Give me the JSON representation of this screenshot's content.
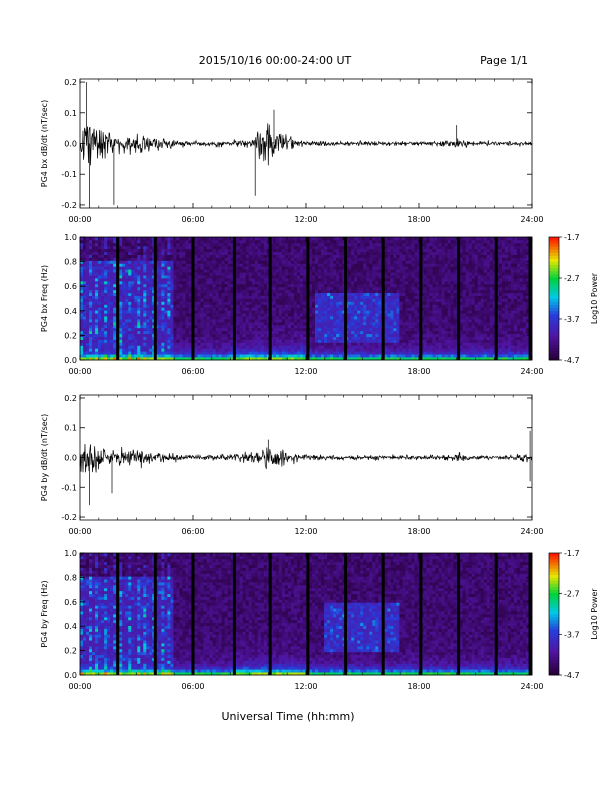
{
  "header": {
    "title": "2015/10/16  00:00-24:00 UT",
    "page": "Page 1/1"
  },
  "xlabel": "Universal Time (hh:mm)",
  "chart_data": [
    {
      "type": "line",
      "name": "bx-timeseries",
      "ylabel": "PG4 bx dB/dt (nT/sec)",
      "xlim": [
        0,
        24
      ],
      "ylim": [
        -0.21,
        0.21
      ],
      "x_ticks": [
        "00:00",
        "06:00",
        "12:00",
        "18:00",
        "24:00"
      ],
      "y_ticks": [
        "0.2",
        "0.1",
        "0.0",
        "-0.1",
        "-0.2"
      ],
      "envelope": {
        "hours": [
          0,
          0.3,
          0.6,
          1,
          1.5,
          2,
          2.5,
          3,
          3.5,
          4,
          4.5,
          5,
          6,
          8,
          9,
          9.5,
          10,
          10.5,
          11,
          11.5,
          12,
          14,
          16,
          19,
          20,
          21,
          22,
          23,
          24
        ],
        "amplitude": [
          0.06,
          0.2,
          0.12,
          0.09,
          0.06,
          0.05,
          0.04,
          0.05,
          0.04,
          0.04,
          0.03,
          0.02,
          0.015,
          0.015,
          0.03,
          0.08,
          0.1,
          0.07,
          0.05,
          0.02,
          0.015,
          0.012,
          0.012,
          0.01,
          0.03,
          0.01,
          0.012,
          0.012,
          0.01
        ]
      },
      "spikes": [
        [
          0.5,
          -0.21
        ],
        [
          0.35,
          0.2
        ],
        [
          1.8,
          -0.2
        ],
        [
          9.3,
          -0.17
        ],
        [
          10.3,
          0.11
        ],
        [
          20.0,
          0.06
        ]
      ]
    },
    {
      "type": "heatmap",
      "name": "bx-spectrogram",
      "ylabel": "PG4 bx Freq (Hz)",
      "xlim": [
        0,
        24
      ],
      "ylim": [
        0,
        1.0
      ],
      "x_ticks": [
        "00:00",
        "06:00",
        "12:00",
        "18:00",
        "24:00"
      ],
      "y_ticks": [
        "1.0",
        "0.8",
        "0.6",
        "0.4",
        "0.2",
        "0.0"
      ],
      "colorbar": {
        "label": "Log10 Power",
        "ticks": [
          "-1.7",
          "-2.7",
          "-3.7",
          "-4.7"
        ],
        "range": [
          -4.7,
          -1.7
        ]
      },
      "gap_hours": [
        2.0,
        4.0,
        6.0,
        8.2,
        10.1,
        12.1,
        14.1,
        16.1,
        18.1,
        20.1,
        22.1,
        23.9
      ],
      "enhanced_regions": [
        {
          "t": [
            12.5,
            17.0
          ],
          "f": [
            0.15,
            0.55
          ],
          "level": -3.5
        },
        {
          "t": [
            0.0,
            5.0
          ],
          "f": [
            0.0,
            0.8
          ],
          "level": -3.6
        }
      ]
    },
    {
      "type": "line",
      "name": "by-timeseries",
      "ylabel": "PG4 by dB/dt (nT/sec)",
      "xlim": [
        0,
        24
      ],
      "ylim": [
        -0.21,
        0.21
      ],
      "x_ticks": [
        "00:00",
        "06:00",
        "12:00",
        "18:00",
        "24:00"
      ],
      "y_ticks": [
        "0.2",
        "0.1",
        "0.0",
        "-0.1",
        "-0.2"
      ],
      "envelope": {
        "hours": [
          0,
          0.3,
          0.6,
          1,
          1.5,
          2,
          2.5,
          3,
          3.5,
          4,
          4.5,
          5,
          6,
          8,
          9,
          9.5,
          10,
          10.5,
          11,
          11.5,
          12,
          14,
          16,
          19,
          20,
          21,
          22,
          23,
          24
        ],
        "amplitude": [
          0.05,
          0.14,
          0.1,
          0.07,
          0.05,
          0.05,
          0.04,
          0.04,
          0.04,
          0.03,
          0.03,
          0.02,
          0.015,
          0.015,
          0.03,
          0.05,
          0.06,
          0.05,
          0.03,
          0.02,
          0.015,
          0.012,
          0.012,
          0.01,
          0.03,
          0.01,
          0.012,
          0.012,
          0.03
        ]
      },
      "spikes": [
        [
          0.5,
          -0.16
        ],
        [
          1.7,
          -0.12
        ],
        [
          10.0,
          0.06
        ],
        [
          23.9,
          0.09
        ],
        [
          23.9,
          -0.08
        ]
      ]
    },
    {
      "type": "heatmap",
      "name": "by-spectrogram",
      "ylabel": "PG4 by Freq (Hz)",
      "xlim": [
        0,
        24
      ],
      "ylim": [
        0,
        1.0
      ],
      "x_ticks": [
        "00:00",
        "06:00",
        "12:00",
        "18:00",
        "24:00"
      ],
      "y_ticks": [
        "1.0",
        "0.8",
        "0.6",
        "0.4",
        "0.2",
        "0.0"
      ],
      "colorbar": {
        "label": "Log10 Power",
        "ticks": [
          "-1.7",
          "-2.7",
          "-3.7",
          "-4.7"
        ],
        "range": [
          -4.7,
          -1.7
        ]
      },
      "gap_hours": [
        2.0,
        4.0,
        6.0,
        8.2,
        10.1,
        12.1,
        14.1,
        16.1,
        18.1,
        20.1,
        22.1,
        23.9
      ],
      "enhanced_regions": [
        {
          "t": [
            13.0,
            17.0
          ],
          "f": [
            0.2,
            0.6
          ],
          "level": -3.5
        },
        {
          "t": [
            0.0,
            5.0
          ],
          "f": [
            0.0,
            0.8
          ],
          "level": -3.6
        }
      ]
    }
  ]
}
